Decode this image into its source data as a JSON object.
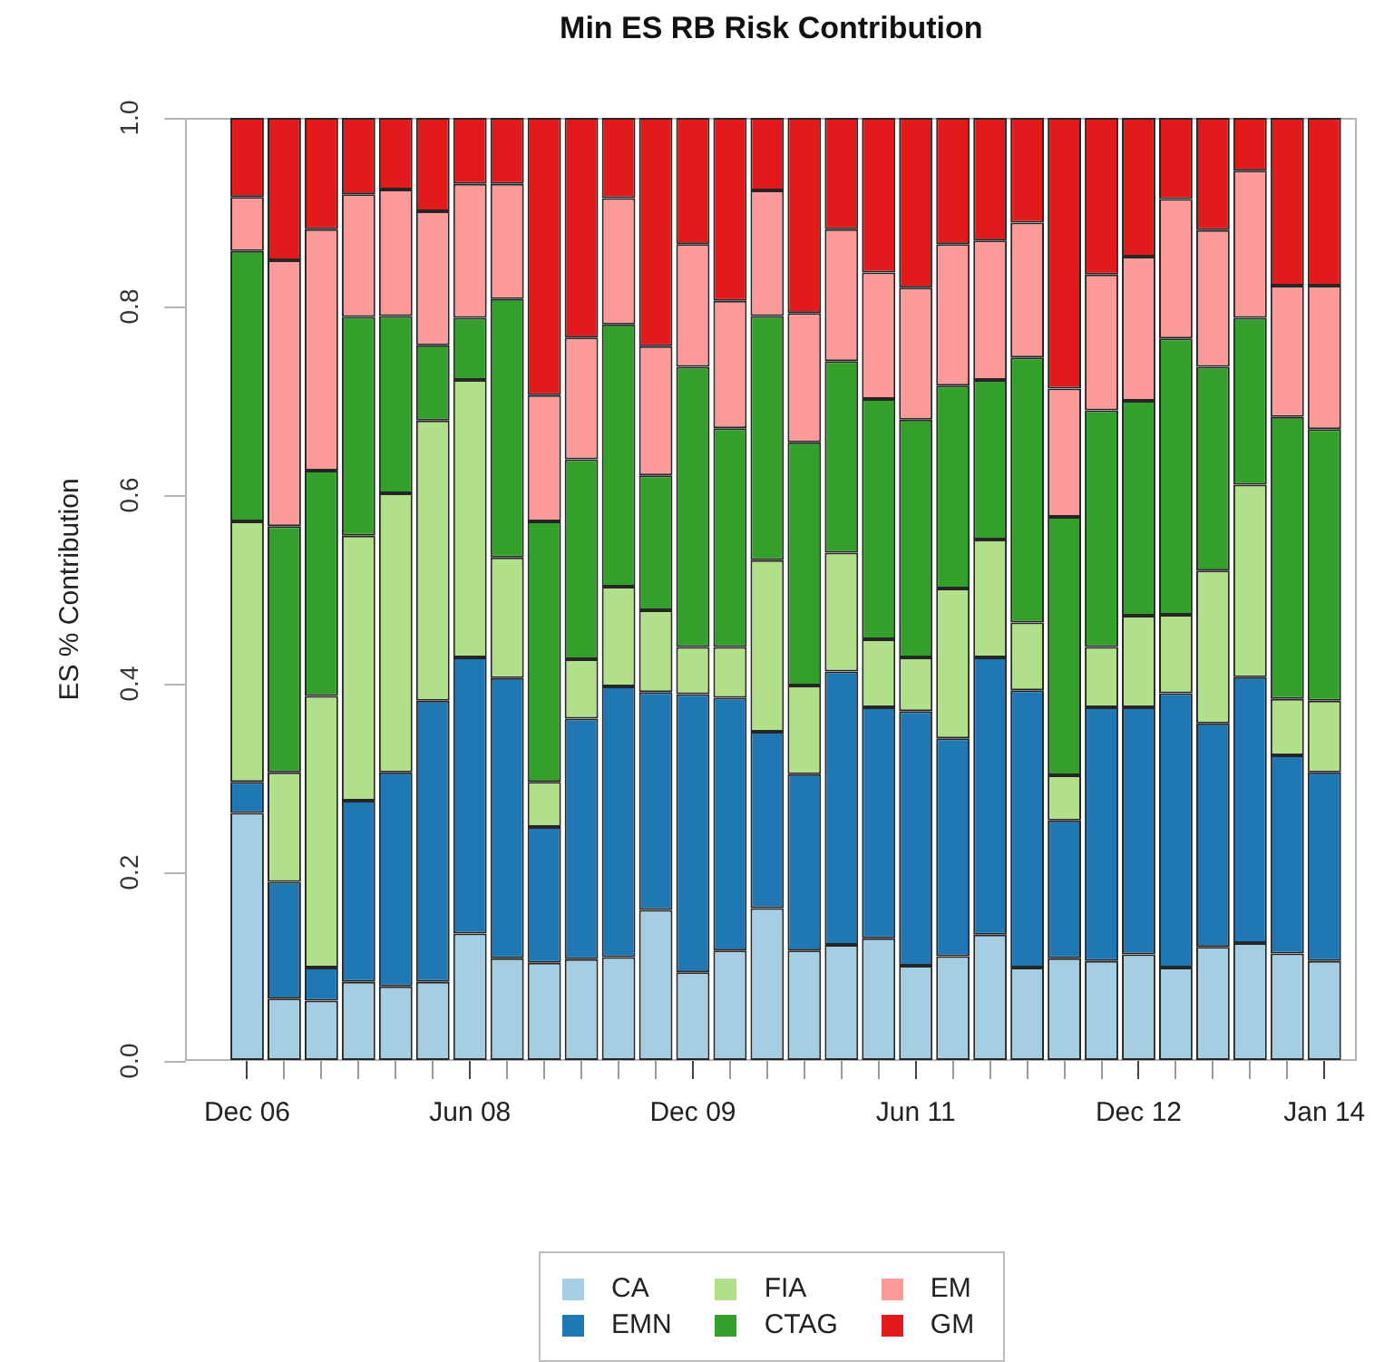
{
  "chart_data": {
    "type": "bar",
    "title": "Min ES RB Risk Contribution",
    "ylabel": "ES % Contribution",
    "categories": [
      "Dec 06",
      null,
      null,
      null,
      null,
      null,
      "Jun 08",
      null,
      null,
      null,
      null,
      null,
      "Dec 09",
      null,
      null,
      null,
      null,
      null,
      "Jun 11",
      null,
      null,
      null,
      null,
      null,
      "Dec 12",
      null,
      null,
      null,
      null,
      "Jan 14"
    ],
    "series": [
      {
        "name": "CA",
        "color": "#a6cee3",
        "values": [
          0.263,
          0.066,
          0.064,
          0.084,
          0.079,
          0.084,
          0.135,
          0.109,
          0.104,
          0.108,
          0.11,
          0.16,
          0.094,
          0.117,
          0.162,
          0.117,
          0.123,
          0.13,
          0.101,
          0.111,
          0.134,
          0.099,
          0.109,
          0.106,
          0.113,
          0.099,
          0.121,
          0.125,
          0.114,
          0.106
        ]
      },
      {
        "name": "EMN",
        "color": "#1f78b4",
        "values": [
          0.033,
          0.124,
          0.035,
          0.192,
          0.227,
          0.298,
          0.293,
          0.297,
          0.144,
          0.255,
          0.287,
          0.231,
          0.295,
          0.268,
          0.187,
          0.187,
          0.29,
          0.245,
          0.27,
          0.231,
          0.294,
          0.294,
          0.146,
          0.269,
          0.262,
          0.291,
          0.237,
          0.282,
          0.21,
          0.2
        ]
      },
      {
        "name": "FIA",
        "color": "#b2df8a",
        "values": [
          0.276,
          0.116,
          0.288,
          0.281,
          0.296,
          0.297,
          0.294,
          0.128,
          0.048,
          0.063,
          0.106,
          0.087,
          0.05,
          0.054,
          0.182,
          0.094,
          0.126,
          0.072,
          0.057,
          0.159,
          0.125,
          0.072,
          0.048,
          0.064,
          0.097,
          0.083,
          0.162,
          0.204,
          0.06,
          0.076
        ]
      },
      {
        "name": "CTAG",
        "color": "#33a02c",
        "values": [
          0.287,
          0.261,
          0.239,
          0.232,
          0.188,
          0.08,
          0.066,
          0.274,
          0.276,
          0.212,
          0.278,
          0.143,
          0.297,
          0.232,
          0.259,
          0.258,
          0.203,
          0.255,
          0.252,
          0.215,
          0.169,
          0.281,
          0.274,
          0.251,
          0.228,
          0.293,
          0.216,
          0.177,
          0.299,
          0.288
        ]
      },
      {
        "name": "EM",
        "color": "#fb9a99",
        "values": [
          0.057,
          0.282,
          0.256,
          0.13,
          0.134,
          0.142,
          0.142,
          0.122,
          0.134,
          0.129,
          0.134,
          0.137,
          0.13,
          0.135,
          0.133,
          0.137,
          0.14,
          0.134,
          0.14,
          0.15,
          0.148,
          0.143,
          0.136,
          0.144,
          0.153,
          0.148,
          0.145,
          0.156,
          0.139,
          0.152
        ]
      },
      {
        "name": "GM",
        "color": "#e31a1c",
        "values": [
          0.084,
          0.151,
          0.118,
          0.081,
          0.076,
          0.099,
          0.07,
          0.07,
          0.294,
          0.233,
          0.085,
          0.242,
          0.134,
          0.194,
          0.077,
          0.207,
          0.118,
          0.164,
          0.18,
          0.134,
          0.13,
          0.111,
          0.287,
          0.166,
          0.147,
          0.086,
          0.119,
          0.056,
          0.178,
          0.178
        ]
      }
    ],
    "stacked": true,
    "ylim": [
      0,
      1
    ],
    "yticks": [
      {
        "value": 0,
        "label": "0.0"
      },
      0.2,
      0.4,
      0.6,
      0.8,
      {
        "value": 1,
        "label": "1.0"
      }
    ],
    "legend": "bottom"
  }
}
